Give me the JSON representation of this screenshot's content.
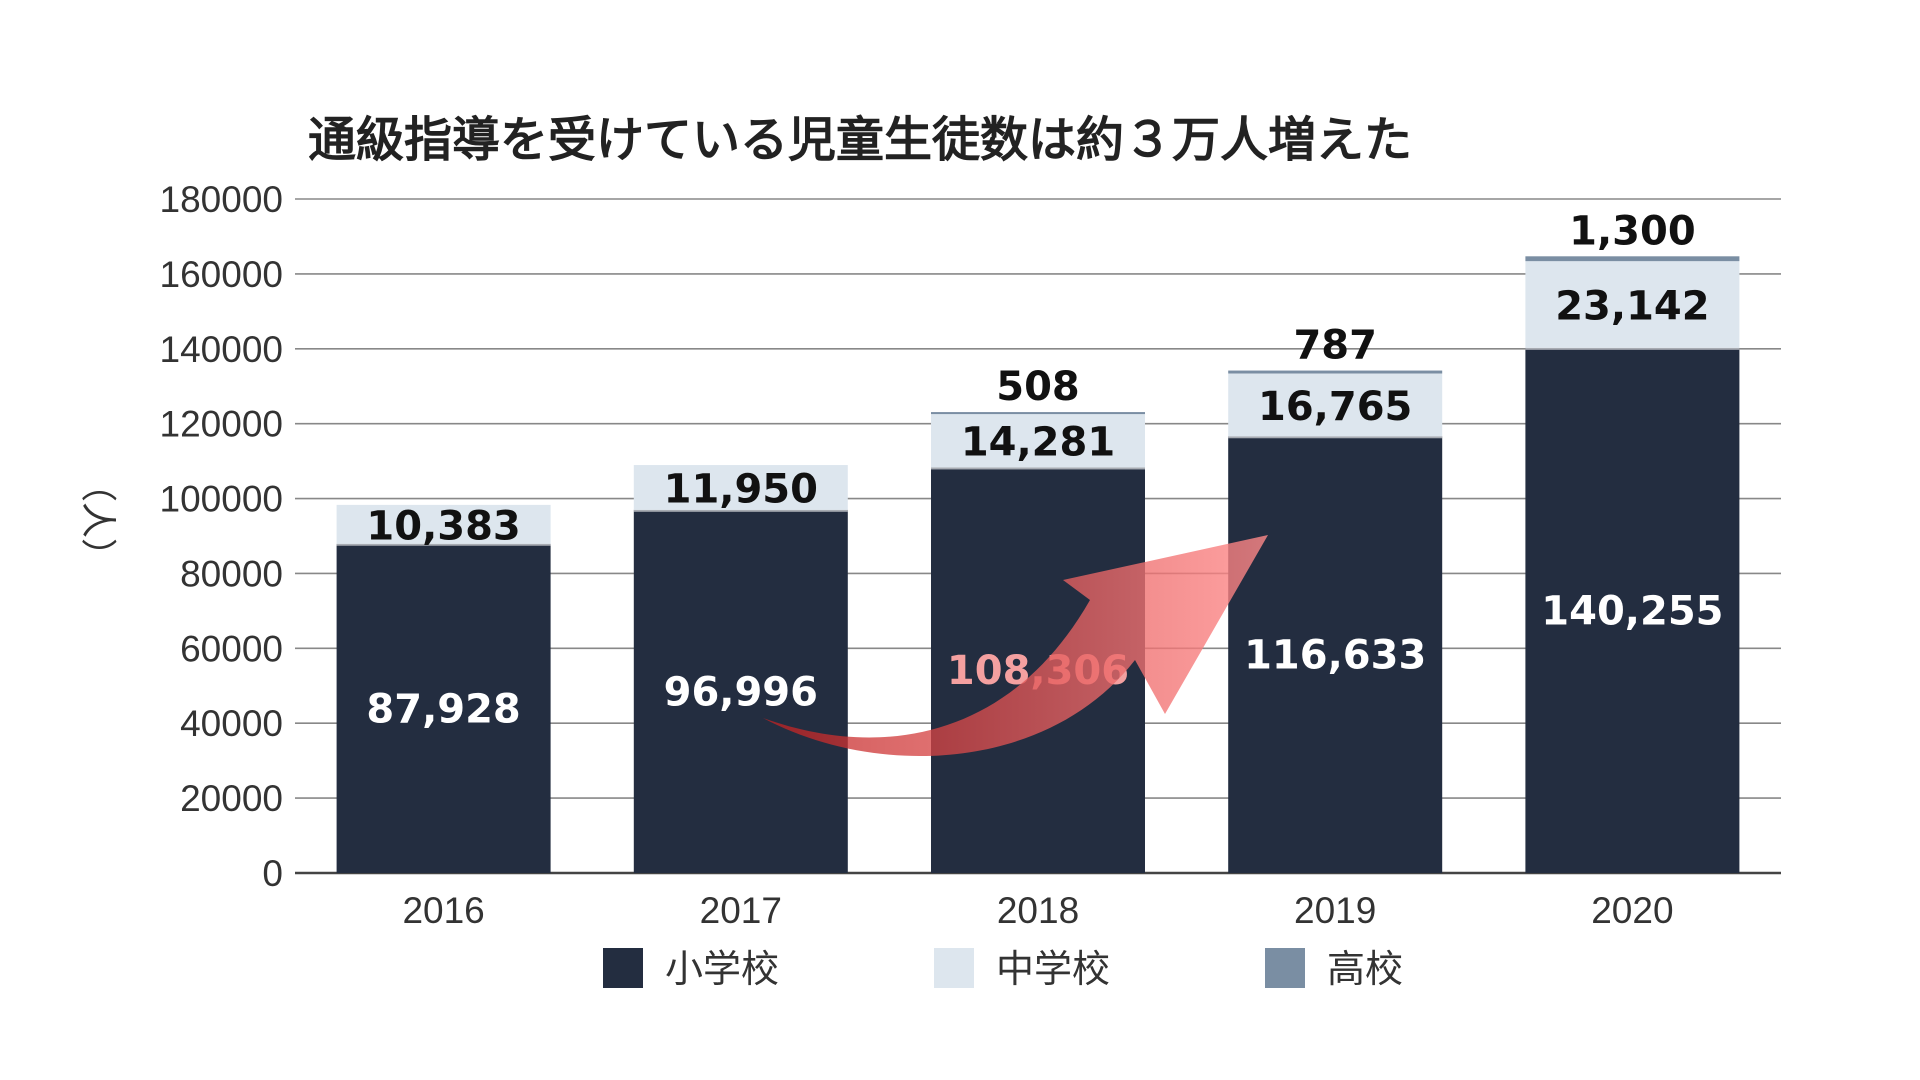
{
  "chart_data": {
    "type": "bar",
    "stacked": true,
    "title": "通級指導を受けている児童生徒数は約３万人増えた",
    "ylabel": "（人）",
    "xlabel": "",
    "ylim": [
      0,
      180000
    ],
    "yticks": [
      0,
      20000,
      40000,
      60000,
      80000,
      100000,
      120000,
      140000,
      160000,
      180000
    ],
    "grid": true,
    "legend_position": "bottom",
    "categories": [
      "2016",
      "2017",
      "2018",
      "2019",
      "2020"
    ],
    "series": [
      {
        "name": "小学校",
        "color": "#232d40",
        "values": [
          87928,
          96996,
          108306,
          116633,
          140255
        ],
        "labels": [
          "87,928",
          "96,996",
          "108,306",
          "116,633",
          "140,255"
        ]
      },
      {
        "name": "中学校",
        "color": "#dde6ee",
        "values": [
          10383,
          11950,
          14281,
          16765,
          23142
        ],
        "labels": [
          "10,383",
          "11,950",
          "14,281",
          "16,765",
          "23,142"
        ]
      },
      {
        "name": "高校",
        "color": "#7a8ea3",
        "values": [
          0,
          0,
          508,
          787,
          1300
        ],
        "labels": [
          "",
          "",
          "508",
          "787",
          "1,300"
        ]
      }
    ],
    "annotation": "red upward curved arrow indicating increase"
  }
}
